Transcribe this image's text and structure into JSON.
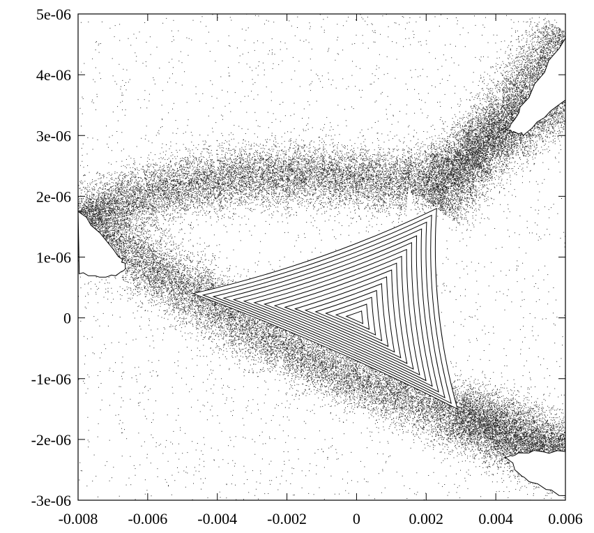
{
  "chart_data": {
    "type": "scatter",
    "title": "",
    "xlabel": "",
    "ylabel": "",
    "xlim": [
      -0.008,
      0.006
    ],
    "ylim": [
      -3e-06,
      5e-06
    ],
    "grid": false,
    "legend": "none",
    "x_ticks": [
      {
        "value": -0.008,
        "label": "-0.008"
      },
      {
        "value": -0.006,
        "label": "-0.006"
      },
      {
        "value": -0.004,
        "label": "-0.004"
      },
      {
        "value": -0.002,
        "label": "-0.002"
      },
      {
        "value": 0,
        "label": "0"
      },
      {
        "value": 0.002,
        "label": "0.002"
      },
      {
        "value": 0.004,
        "label": "0.004"
      },
      {
        "value": 0.006,
        "label": "0.006"
      }
    ],
    "y_ticks": [
      {
        "value": 5e-06,
        "label": "5e-06"
      },
      {
        "value": 4e-06,
        "label": "4e-06"
      },
      {
        "value": 3e-06,
        "label": "3e-06"
      },
      {
        "value": 2e-06,
        "label": "2e-06"
      },
      {
        "value": 1e-06,
        "label": "1e-06"
      },
      {
        "value": 0,
        "label": "0"
      },
      {
        "value": -1e-06,
        "label": "-1e-06"
      },
      {
        "value": -2e-06,
        "label": "-2e-06"
      },
      {
        "value": -3e-06,
        "label": "-3e-06"
      }
    ],
    "stable_region": {
      "center": [
        0.0,
        0.0
      ],
      "vertices": [
        [
          -0.0047,
          4e-07
        ],
        [
          0.0023,
          1.8e-06
        ],
        [
          0.0029,
          -1.5e-06
        ]
      ],
      "num_invariant_curves": 16
    },
    "islands": [
      {
        "side": "left",
        "tip": [
          -0.0066,
          8e-07
        ]
      },
      {
        "side": "upper-right",
        "tip": [
          0.0043,
          3.1e-06
        ]
      },
      {
        "side": "lower-right",
        "tip": [
          0.0043,
          -2.3e-06
        ]
      }
    ],
    "chaotic_band_separatrices": [
      {
        "name": "left-band",
        "points": [
          [
            -0.008,
            1.75e-06
          ],
          [
            -0.0064,
            1e-06
          ],
          [
            -0.0047,
            4e-07
          ],
          [
            -0.002,
            -5e-07
          ],
          [
            0.001,
            -1.2e-06
          ],
          [
            0.0029,
            -1.6e-06
          ],
          [
            0.0045,
            -2.05e-06
          ],
          [
            0.006,
            -2.4e-06
          ]
        ]
      },
      {
        "name": "upper-band",
        "points": [
          [
            -0.008,
            1.6e-06
          ],
          [
            -0.006,
            2.05e-06
          ],
          [
            -0.004,
            2.3e-06
          ],
          [
            -0.002,
            2.35e-06
          ],
          [
            0.0,
            2.3e-06
          ],
          [
            0.0015,
            2.2e-06
          ],
          [
            0.0025,
            2.35e-06
          ],
          [
            0.0035,
            2.85e-06
          ],
          [
            0.0048,
            3.7e-06
          ],
          [
            0.006,
            4.7e-06
          ]
        ]
      },
      {
        "name": "right-band",
        "points": [
          [
            0.0023,
            1.8e-06
          ],
          [
            0.0033,
            2.6e-06
          ],
          [
            0.0045,
            3.15e-06
          ],
          [
            0.006,
            3.55e-06
          ]
        ]
      },
      {
        "name": "lower-right-band",
        "points": [
          [
            0.0029,
            -1.5e-06
          ],
          [
            0.004,
            -1.75e-06
          ],
          [
            0.006,
            -2.15e-06
          ]
        ]
      }
    ]
  }
}
